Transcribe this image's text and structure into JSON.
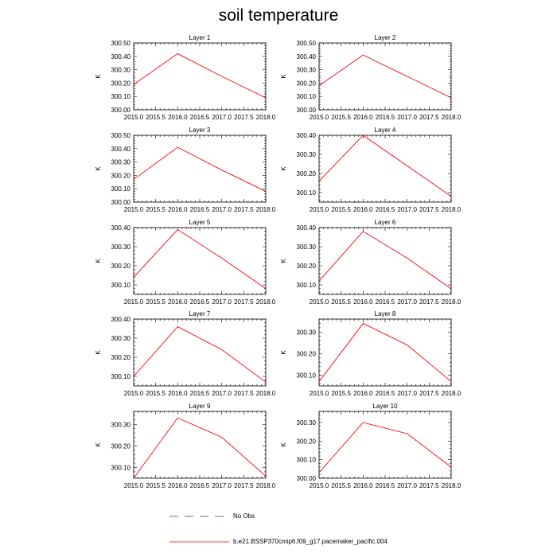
{
  "title": "soil temperature",
  "chart_data": [
    {
      "type": "line",
      "title": "Layer 1",
      "xlabel": "",
      "ylabel": "K",
      "xlim": [
        2015.0,
        2018.0
      ],
      "ylim": [
        300.0,
        300.5
      ],
      "yticks": [
        "300.00",
        "300.10",
        "300.20",
        "300.30",
        "300.40",
        "300.50"
      ],
      "x": [
        2015.0,
        2016.0,
        2017.0,
        2018.0
      ],
      "series": [
        {
          "name": "b.e21.BSSP370cmip6.f09_g17.pacemaker_pacific.004",
          "color": "#ff0000",
          "values": [
            300.19,
            300.42,
            300.25,
            300.09
          ]
        }
      ]
    },
    {
      "type": "line",
      "title": "Layer 2",
      "xlabel": "",
      "ylabel": "K",
      "xlim": [
        2015.0,
        2018.0
      ],
      "ylim": [
        300.0,
        300.5
      ],
      "yticks": [
        "300.00",
        "300.10",
        "300.20",
        "300.30",
        "300.40",
        "300.50"
      ],
      "x": [
        2015.0,
        2016.0,
        2017.0,
        2018.0
      ],
      "series": [
        {
          "name": "b.e21.BSSP370cmip6.f09_g17.pacemaker_pacific.004",
          "color": "#ff0000",
          "values": [
            300.18,
            300.41,
            300.25,
            300.09
          ]
        }
      ]
    },
    {
      "type": "line",
      "title": "Layer 3",
      "xlabel": "",
      "ylabel": "K",
      "xlim": [
        2015.0,
        2018.0
      ],
      "ylim": [
        300.0,
        300.5
      ],
      "yticks": [
        "300.00",
        "300.10",
        "300.20",
        "300.30",
        "300.40",
        "300.50"
      ],
      "x": [
        2015.0,
        2016.0,
        2017.0,
        2018.0
      ],
      "series": [
        {
          "name": "b.e21.BSSP370cmip6.f09_g17.pacemaker_pacific.004",
          "color": "#ff0000",
          "values": [
            300.17,
            300.41,
            300.24,
            300.08
          ]
        }
      ]
    },
    {
      "type": "line",
      "title": "Layer 4",
      "xlabel": "",
      "ylabel": "K",
      "xlim": [
        2015.0,
        2018.0
      ],
      "ylim": [
        300.05,
        300.4
      ],
      "yticks": [
        "300.10",
        "300.20",
        "300.30",
        "300.40"
      ],
      "x": [
        2015.0,
        2016.0,
        2017.0,
        2018.0
      ],
      "series": [
        {
          "name": "b.e21.BSSP370cmip6.f09_g17.pacemaker_pacific.004",
          "color": "#ff0000",
          "values": [
            300.16,
            300.4,
            300.24,
            300.08
          ]
        }
      ]
    },
    {
      "type": "line",
      "title": "Layer 5",
      "xlabel": "",
      "ylabel": "K",
      "xlim": [
        2015.0,
        2018.0
      ],
      "ylim": [
        300.05,
        300.4
      ],
      "yticks": [
        "300.10",
        "300.20",
        "300.30",
        "300.40"
      ],
      "x": [
        2015.0,
        2016.0,
        2017.0,
        2018.0
      ],
      "series": [
        {
          "name": "b.e21.BSSP370cmip6.f09_g17.pacemaker_pacific.004",
          "color": "#ff0000",
          "values": [
            300.14,
            300.39,
            300.24,
            300.08
          ]
        }
      ]
    },
    {
      "type": "line",
      "title": "Layer 6",
      "xlabel": "",
      "ylabel": "K",
      "xlim": [
        2015.0,
        2018.0
      ],
      "ylim": [
        300.05,
        300.4
      ],
      "yticks": [
        "300.10",
        "300.20",
        "300.30",
        "300.40"
      ],
      "x": [
        2015.0,
        2016.0,
        2017.0,
        2018.0
      ],
      "series": [
        {
          "name": "b.e21.BSSP370cmip6.f09_g17.pacemaker_pacific.004",
          "color": "#ff0000",
          "values": [
            300.12,
            300.38,
            300.24,
            300.08
          ]
        }
      ]
    },
    {
      "type": "line",
      "title": "Layer 7",
      "xlabel": "",
      "ylabel": "K",
      "xlim": [
        2015.0,
        2018.0
      ],
      "ylim": [
        300.05,
        300.4
      ],
      "yticks": [
        "300.10",
        "300.20",
        "300.30",
        "300.40"
      ],
      "x": [
        2015.0,
        2016.0,
        2017.0,
        2018.0
      ],
      "series": [
        {
          "name": "b.e21.BSSP370cmip6.f09_g17.pacemaker_pacific.004",
          "color": "#ff0000",
          "values": [
            300.1,
            300.36,
            300.24,
            300.07
          ]
        }
      ]
    },
    {
      "type": "line",
      "title": "Layer 8",
      "xlabel": "",
      "ylabel": "K",
      "xlim": [
        2015.0,
        2018.0
      ],
      "ylim": [
        300.05,
        300.36
      ],
      "yticks": [
        "300.10",
        "300.20",
        "300.30"
      ],
      "x": [
        2015.0,
        2016.0,
        2017.0,
        2018.0
      ],
      "series": [
        {
          "name": "b.e21.BSSP370cmip6.f09_g17.pacemaker_pacific.004",
          "color": "#ff0000",
          "values": [
            300.07,
            300.34,
            300.24,
            300.07
          ]
        }
      ]
    },
    {
      "type": "line",
      "title": "Layer 9",
      "xlabel": "",
      "ylabel": "K",
      "xlim": [
        2015.0,
        2018.0
      ],
      "ylim": [
        300.05,
        300.36
      ],
      "yticks": [
        "300.10",
        "300.20",
        "300.30"
      ],
      "x": [
        2015.0,
        2016.0,
        2017.0,
        2018.0
      ],
      "series": [
        {
          "name": "b.e21.BSSP370cmip6.f09_g17.pacemaker_pacific.004",
          "color": "#ff0000",
          "values": [
            300.05,
            300.33,
            300.24,
            300.06
          ]
        }
      ]
    },
    {
      "type": "line",
      "title": "Layer 10",
      "xlabel": "",
      "ylabel": "K",
      "xlim": [
        2015.0,
        2018.0
      ],
      "ylim": [
        300.0,
        300.36
      ],
      "yticks": [
        "300.00",
        "300.10",
        "300.20",
        "300.30"
      ],
      "x": [
        2015.0,
        2016.0,
        2017.0,
        2018.0
      ],
      "series": [
        {
          "name": "b.e21.BSSP370cmip6.f09_g17.pacemaker_pacific.004",
          "color": "#ff0000",
          "values": [
            300.03,
            300.3,
            300.24,
            300.06
          ]
        }
      ]
    }
  ],
  "xticks": [
    "2015.0",
    "2015.5",
    "2016.0",
    "2016.5",
    "2017.0",
    "2017.5",
    "2018.0"
  ],
  "legend": {
    "placement": "bottom",
    "items": [
      {
        "label": "No Obs",
        "style": "dashed",
        "color": "#3a3a8a"
      },
      {
        "label": "b.e21.BSSP370cmip6.f09_g17.pacemaker_pacific.004",
        "style": "solid",
        "color": "#ff0000"
      }
    ]
  }
}
